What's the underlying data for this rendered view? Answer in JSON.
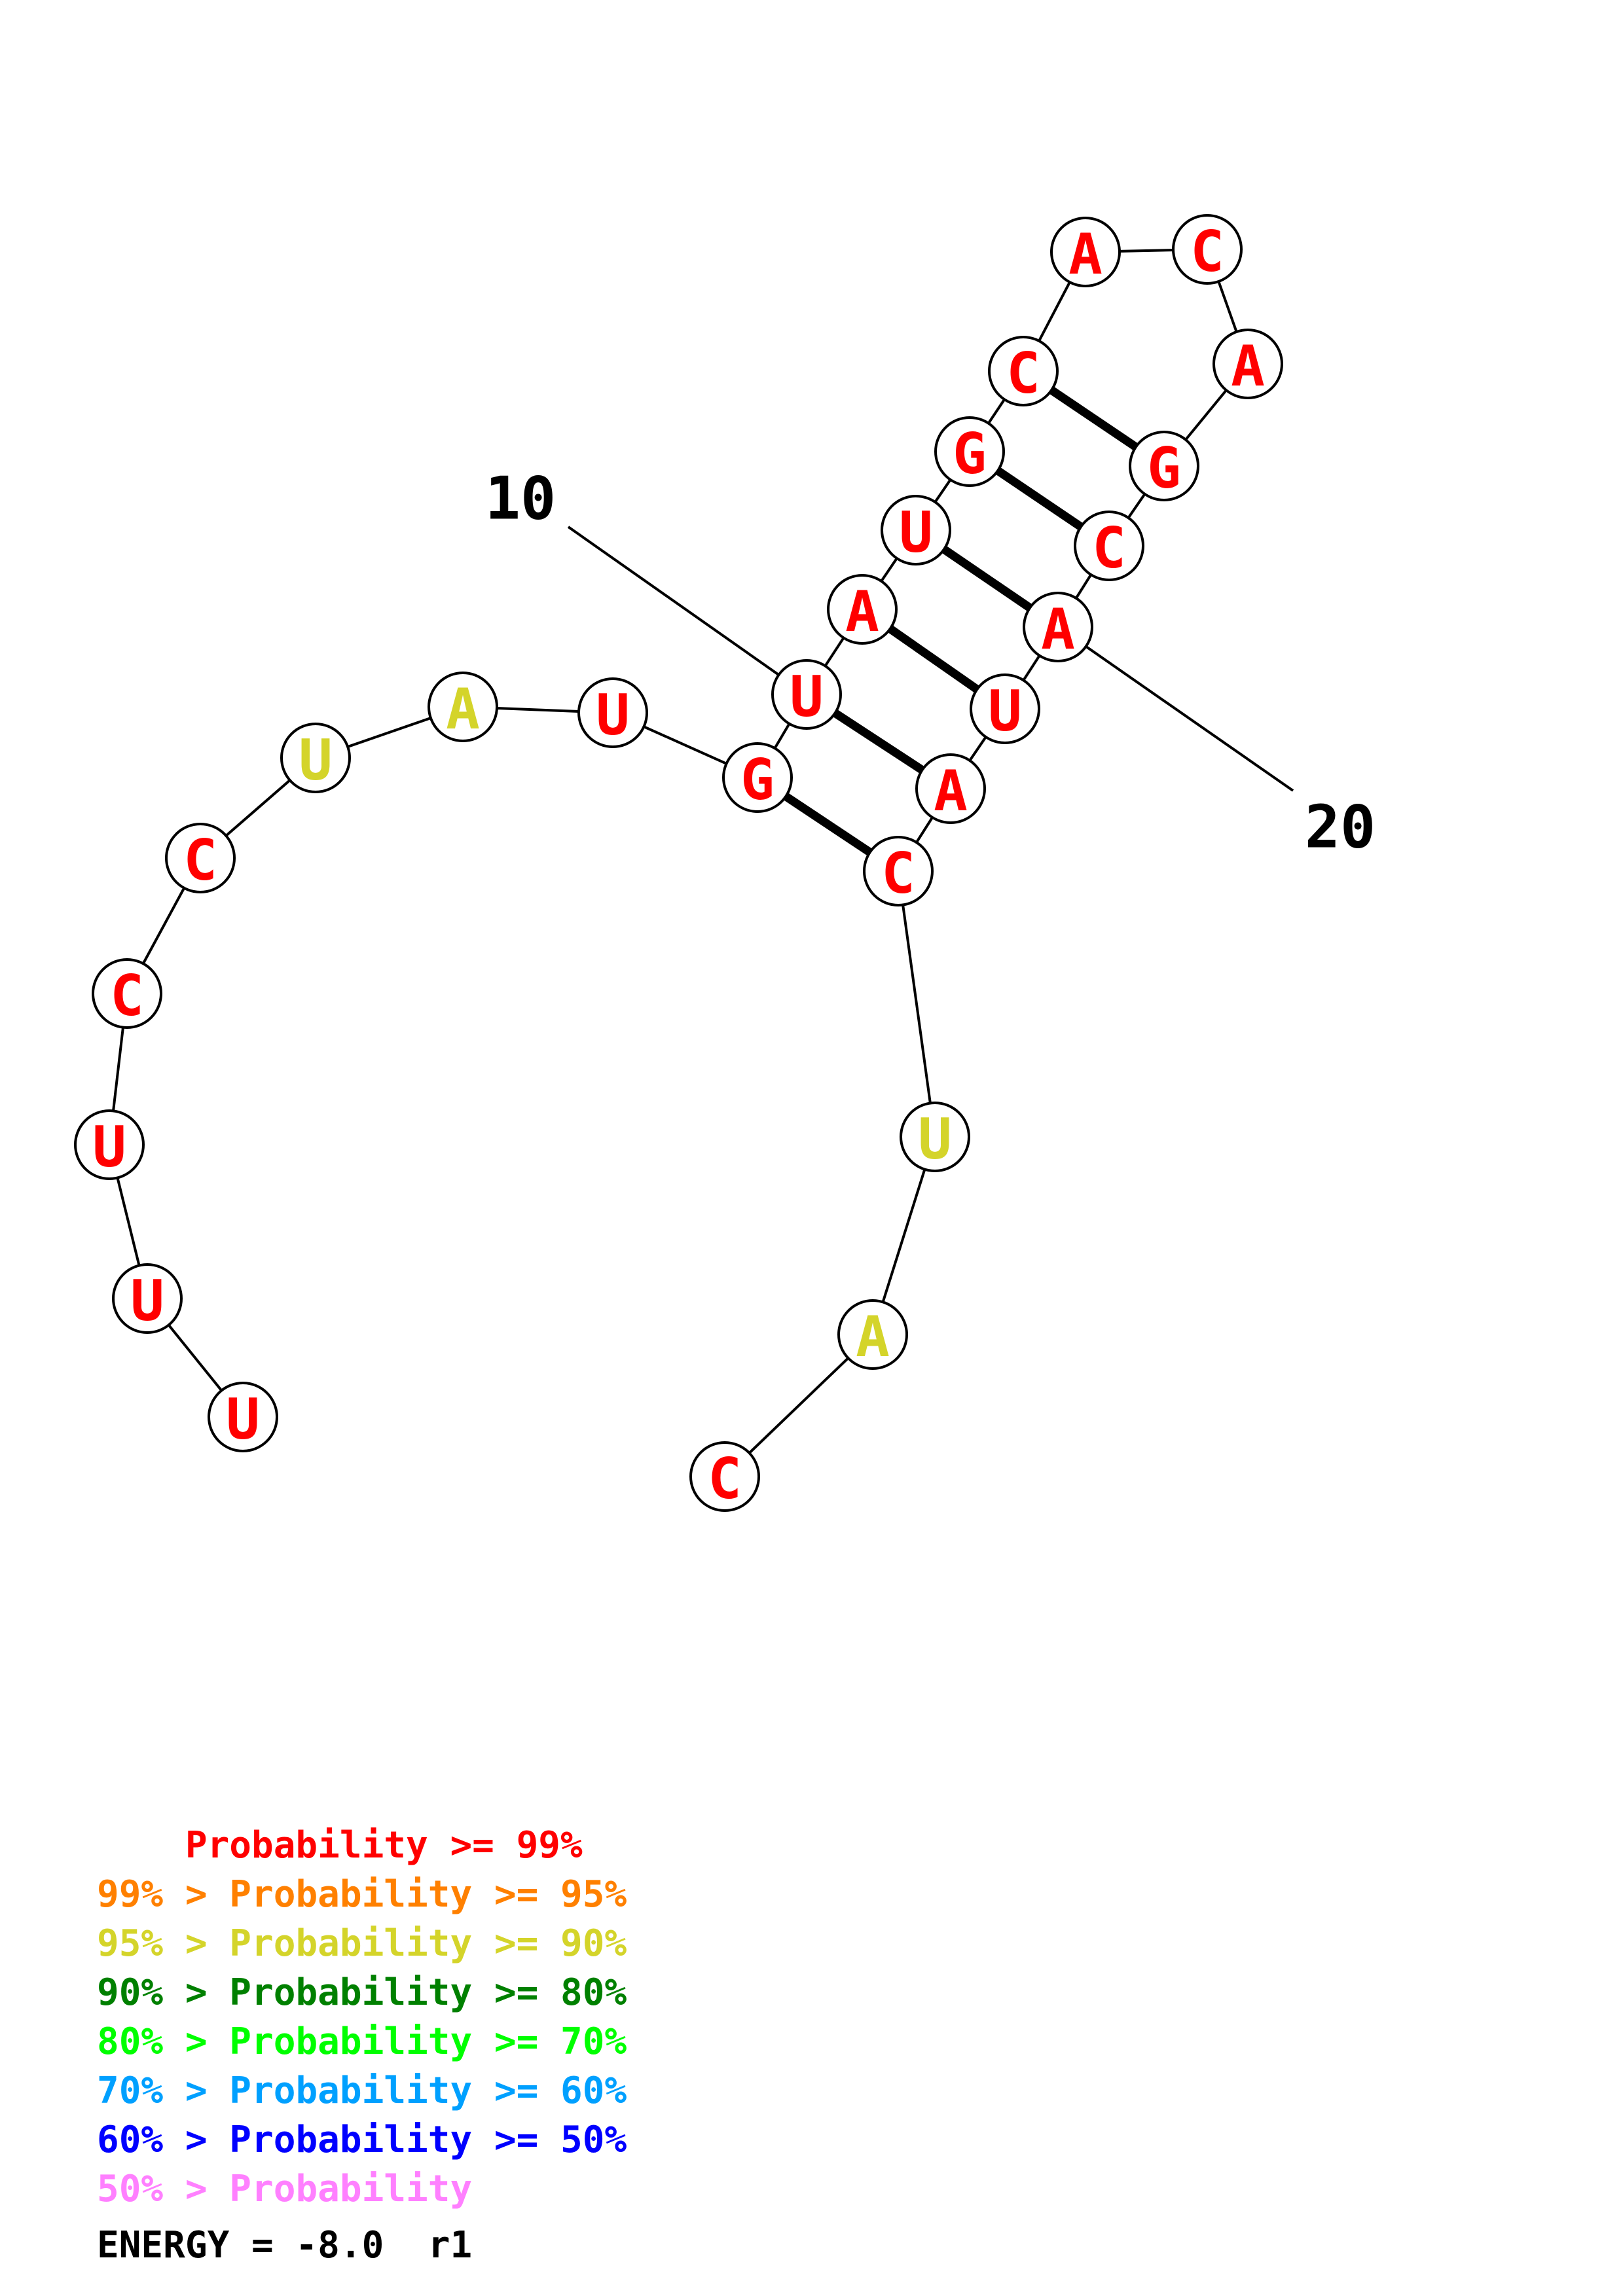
{
  "structure": {
    "nucleotides": [
      {
        "base": "U",
        "level": "p99"
      },
      {
        "base": "U",
        "level": "p99"
      },
      {
        "base": "U",
        "level": "p99"
      },
      {
        "base": "C",
        "level": "p99"
      },
      {
        "base": "C",
        "level": "p99"
      },
      {
        "base": "U",
        "level": "p90"
      },
      {
        "base": "A",
        "level": "p90"
      },
      {
        "base": "U",
        "level": "p99"
      },
      {
        "base": "G",
        "level": "p99"
      },
      {
        "base": "U",
        "level": "p99"
      },
      {
        "base": "A",
        "level": "p99"
      },
      {
        "base": "U",
        "level": "p99"
      },
      {
        "base": "G",
        "level": "p99"
      },
      {
        "base": "C",
        "level": "p99"
      },
      {
        "base": "A",
        "level": "p99"
      },
      {
        "base": "C",
        "level": "p99"
      },
      {
        "base": "A",
        "level": "p99"
      },
      {
        "base": "G",
        "level": "p99"
      },
      {
        "base": "C",
        "level": "p99"
      },
      {
        "base": "A",
        "level": "p99"
      },
      {
        "base": "U",
        "level": "p99"
      },
      {
        "base": "A",
        "level": "p99"
      },
      {
        "base": "C",
        "level": "p99"
      },
      {
        "base": "U",
        "level": "p90"
      },
      {
        "base": "A",
        "level": "p90"
      },
      {
        "base": "C",
        "level": "p99"
      }
    ],
    "pairs": [
      [
        9,
        23
      ],
      [
        10,
        22
      ],
      [
        11,
        21
      ],
      [
        12,
        20
      ],
      [
        13,
        19
      ],
      [
        14,
        18
      ]
    ],
    "position_labels": [
      {
        "text": "10",
        "position": 10
      },
      {
        "text": "20",
        "position": 20
      }
    ]
  },
  "legend": [
    {
      "prefix": "    ",
      "main": "Probability >= 99%",
      "color": "#ff0000"
    },
    {
      "prefix": "99% > ",
      "main": "Probability >= 95%",
      "color": "#ff8000"
    },
    {
      "prefix": "95% > ",
      "main": "Probability >= 90%",
      "color": "#d4d42a"
    },
    {
      "prefix": "90% > ",
      "main": "Probability >= 80%",
      "color": "#008000"
    },
    {
      "prefix": "80% > ",
      "main": "Probability >= 70%",
      "color": "#00ff00"
    },
    {
      "prefix": "70% > ",
      "main": "Probability >= 60%",
      "color": "#00a0ff"
    },
    {
      "prefix": "60% > ",
      "main": "Probability >= 50%",
      "color": "#0000ff"
    },
    {
      "prefix": "50% > ",
      "main": "Probability",
      "color": "#ff80ff"
    }
  ],
  "level_colors": {
    "p99": "#ff0000",
    "p95": "#ff8000",
    "p90": "#d4d42a",
    "p80": "#008000",
    "p70": "#00ff00",
    "p60": "#00a0ff",
    "p50": "#0000ff",
    "below": "#ff80ff"
  },
  "energy": {
    "label": "ENERGY = -8.0  r1"
  }
}
